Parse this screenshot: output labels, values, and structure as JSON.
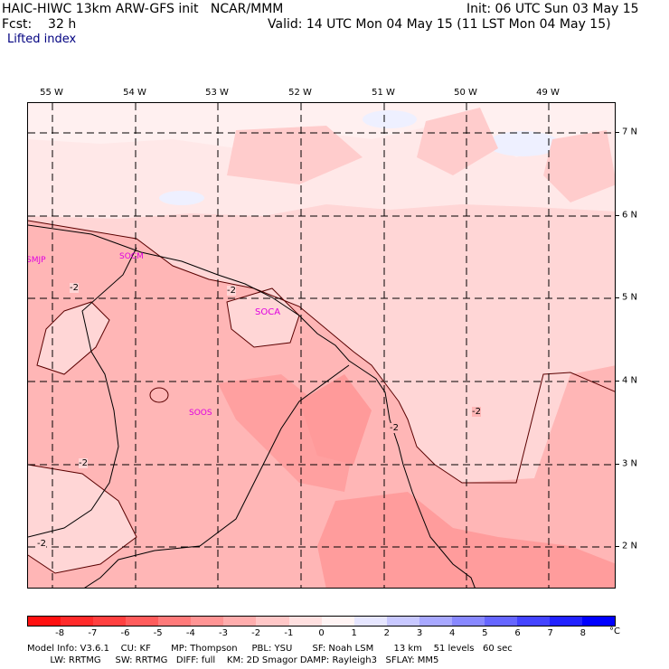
{
  "header": {
    "model": "HAIC-HIWC 13km ARW-GFS init   NCAR/MMM",
    "init": "Init: 06 UTC Sun 03 May 15",
    "fcst": "Fcst:    32 h",
    "valid": "Valid: 14 UTC Mon 04 May 15 (11 LST Mon 04 May 15)",
    "field": "Lifted index"
  },
  "longitudes": [
    "55 W",
    "54 W",
    "53 W",
    "52 W",
    "51 W",
    "50 W",
    "49 W"
  ],
  "latitudes": [
    "7 N",
    "6 N",
    "5 N",
    "4 N",
    "3 N",
    "2 N"
  ],
  "stations": [
    "SMJP",
    "SOCM",
    "SOCA",
    "SOOS"
  ],
  "contour_labels": [
    "-2",
    "-2",
    "-2",
    "-2",
    "-2",
    "-2"
  ],
  "colorbar": {
    "labels": [
      "-8",
      "-7",
      "-6",
      "-5",
      "-4",
      "-3",
      "-2",
      "-1",
      "0",
      "1",
      "2",
      "3",
      "4",
      "5",
      "6",
      "7",
      "8"
    ],
    "unit": "°C",
    "colors": [
      "#ff1010",
      "#ff2a2a",
      "#ff4040",
      "#ff5c5c",
      "#ff7a7a",
      "#ff9494",
      "#ffadad",
      "#ffc7c7",
      "#ffe0e0",
      "#fff4f4",
      "#e6e6ff",
      "#c8c8ff",
      "#a8a8ff",
      "#8888ff",
      "#6666ff",
      "#4444ff",
      "#2222ff",
      "#0000ff"
    ]
  },
  "footer": {
    "line1": "Model Info: V3.6.1    CU: KF       MP: Thompson     PBL: YSU       SF: Noah LSM       13 km    51 levels   60 sec",
    "line2": "        LW: RRTMG     SW: RRTMG   DIFF: full    KM: 2D Smagor DAMP: Rayleigh3   SFLAY: MM5"
  }
}
